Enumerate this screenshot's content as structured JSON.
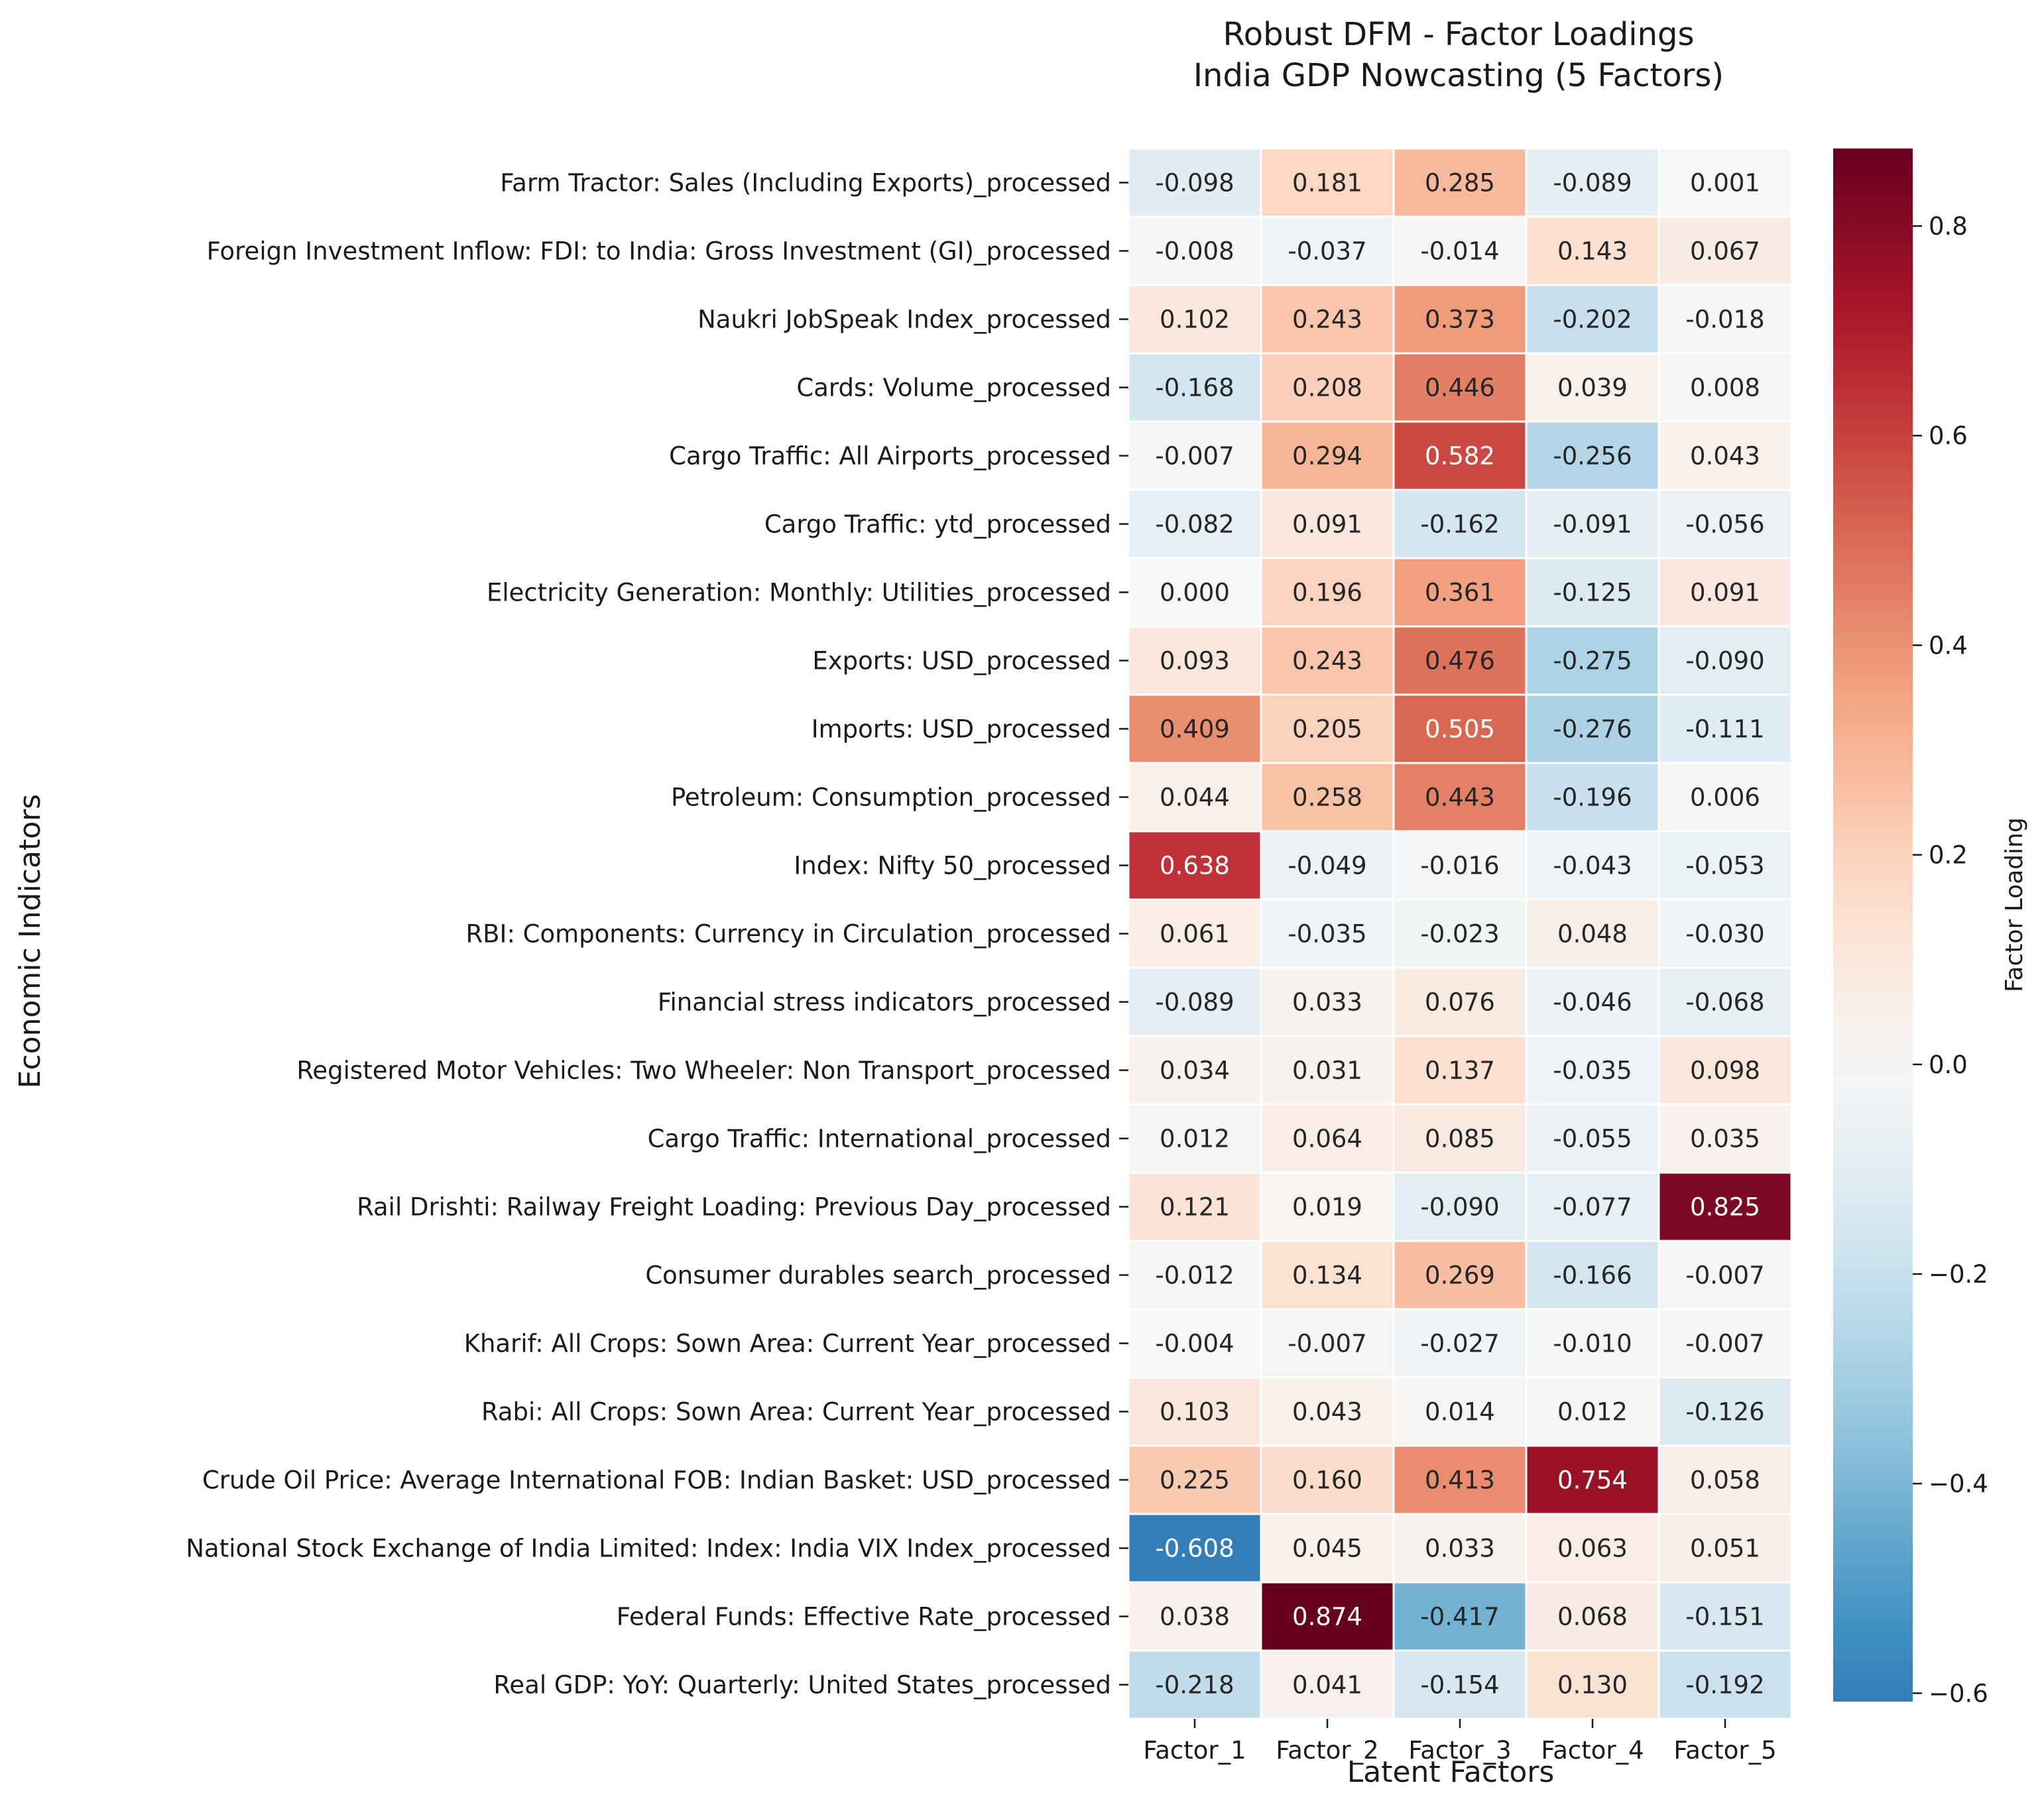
{
  "chart_data": {
    "type": "heatmap",
    "title": "Robust DFM - Factor Loadings\nIndia GDP Nowcasting (5 Factors)",
    "xlabel": "Latent Factors",
    "ylabel": "Economic Indicators",
    "colorbar_label": "Factor Loading",
    "colormap": "RdBu_r",
    "vmin": -0.608,
    "vmax": 0.874,
    "colorbar_ticks": [
      -0.6,
      -0.4,
      -0.2,
      0.0,
      0.2,
      0.4,
      0.6,
      0.8
    ],
    "colorbar_tick_labels": [
      "−0.6",
      "−0.4",
      "−0.2",
      "0.0",
      "0.2",
      "0.4",
      "0.6",
      "0.8"
    ],
    "columns": [
      "Factor_1",
      "Factor_2",
      "Factor_3",
      "Factor_4",
      "Factor_5"
    ],
    "rows": [
      "Farm Tractor: Sales (Including Exports)_processed",
      "Foreign Investment Inflow: FDI: to India: Gross Investment (GI)_processed",
      "Naukri JobSpeak Index_processed",
      "Cards: Volume_processed",
      "Cargo Traffic: All Airports_processed",
      "Cargo Traffic: ytd_processed",
      "Electricity Generation: Monthly: Utilities_processed",
      "Exports: USD_processed",
      "Imports: USD_processed",
      "Petroleum: Consumption_processed",
      "Index: Nifty 50_processed",
      "RBI: Components: Currency in Circulation_processed",
      "Financial stress indicators_processed",
      "Registered Motor Vehicles: Two Wheeler: Non Transport_processed",
      "Cargo Traffic: International_processed",
      "Rail Drishti: Railway Freight Loading: Previous Day_processed",
      "Consumer durables search_processed",
      "Kharif: All Crops: Sown Area: Current Year_processed",
      "Rabi: All Crops: Sown Area: Current Year_processed",
      "Crude Oil Price: Average International FOB: Indian Basket: USD_processed",
      "National Stock Exchange of India Limited: Index: India VIX Index_processed",
      "Federal Funds: Effective Rate_processed",
      "Real GDP: YoY: Quarterly: United States_processed"
    ],
    "values": [
      [
        -0.098,
        0.181,
        0.285,
        -0.089,
        0.001
      ],
      [
        -0.008,
        -0.037,
        -0.014,
        0.143,
        0.067
      ],
      [
        0.102,
        0.243,
        0.373,
        -0.202,
        -0.018
      ],
      [
        -0.168,
        0.208,
        0.446,
        0.039,
        0.008
      ],
      [
        -0.007,
        0.294,
        0.582,
        -0.256,
        0.043
      ],
      [
        -0.082,
        0.091,
        -0.162,
        -0.091,
        -0.056
      ],
      [
        0.0,
        0.196,
        0.361,
        -0.125,
        0.091
      ],
      [
        0.093,
        0.243,
        0.476,
        -0.275,
        -0.09
      ],
      [
        0.409,
        0.205,
        0.505,
        -0.276,
        -0.111
      ],
      [
        0.044,
        0.258,
        0.443,
        -0.196,
        0.006
      ],
      [
        0.638,
        -0.049,
        -0.016,
        -0.043,
        -0.053
      ],
      [
        0.061,
        -0.035,
        -0.023,
        0.048,
        -0.03
      ],
      [
        -0.089,
        0.033,
        0.076,
        -0.046,
        -0.068
      ],
      [
        0.034,
        0.031,
        0.137,
        -0.035,
        0.098
      ],
      [
        0.012,
        0.064,
        0.085,
        -0.055,
        0.035
      ],
      [
        0.121,
        0.019,
        -0.09,
        -0.077,
        0.825
      ],
      [
        -0.012,
        0.134,
        0.269,
        -0.166,
        -0.007
      ],
      [
        -0.004,
        -0.007,
        -0.027,
        -0.01,
        -0.007
      ],
      [
        0.103,
        0.043,
        0.014,
        0.012,
        -0.126
      ],
      [
        0.225,
        0.16,
        0.413,
        0.754,
        0.058
      ],
      [
        -0.608,
        0.045,
        0.033,
        0.063,
        0.051
      ],
      [
        0.038,
        0.874,
        -0.417,
        0.068,
        -0.151
      ],
      [
        -0.218,
        0.041,
        -0.154,
        0.13,
        -0.192
      ]
    ]
  }
}
